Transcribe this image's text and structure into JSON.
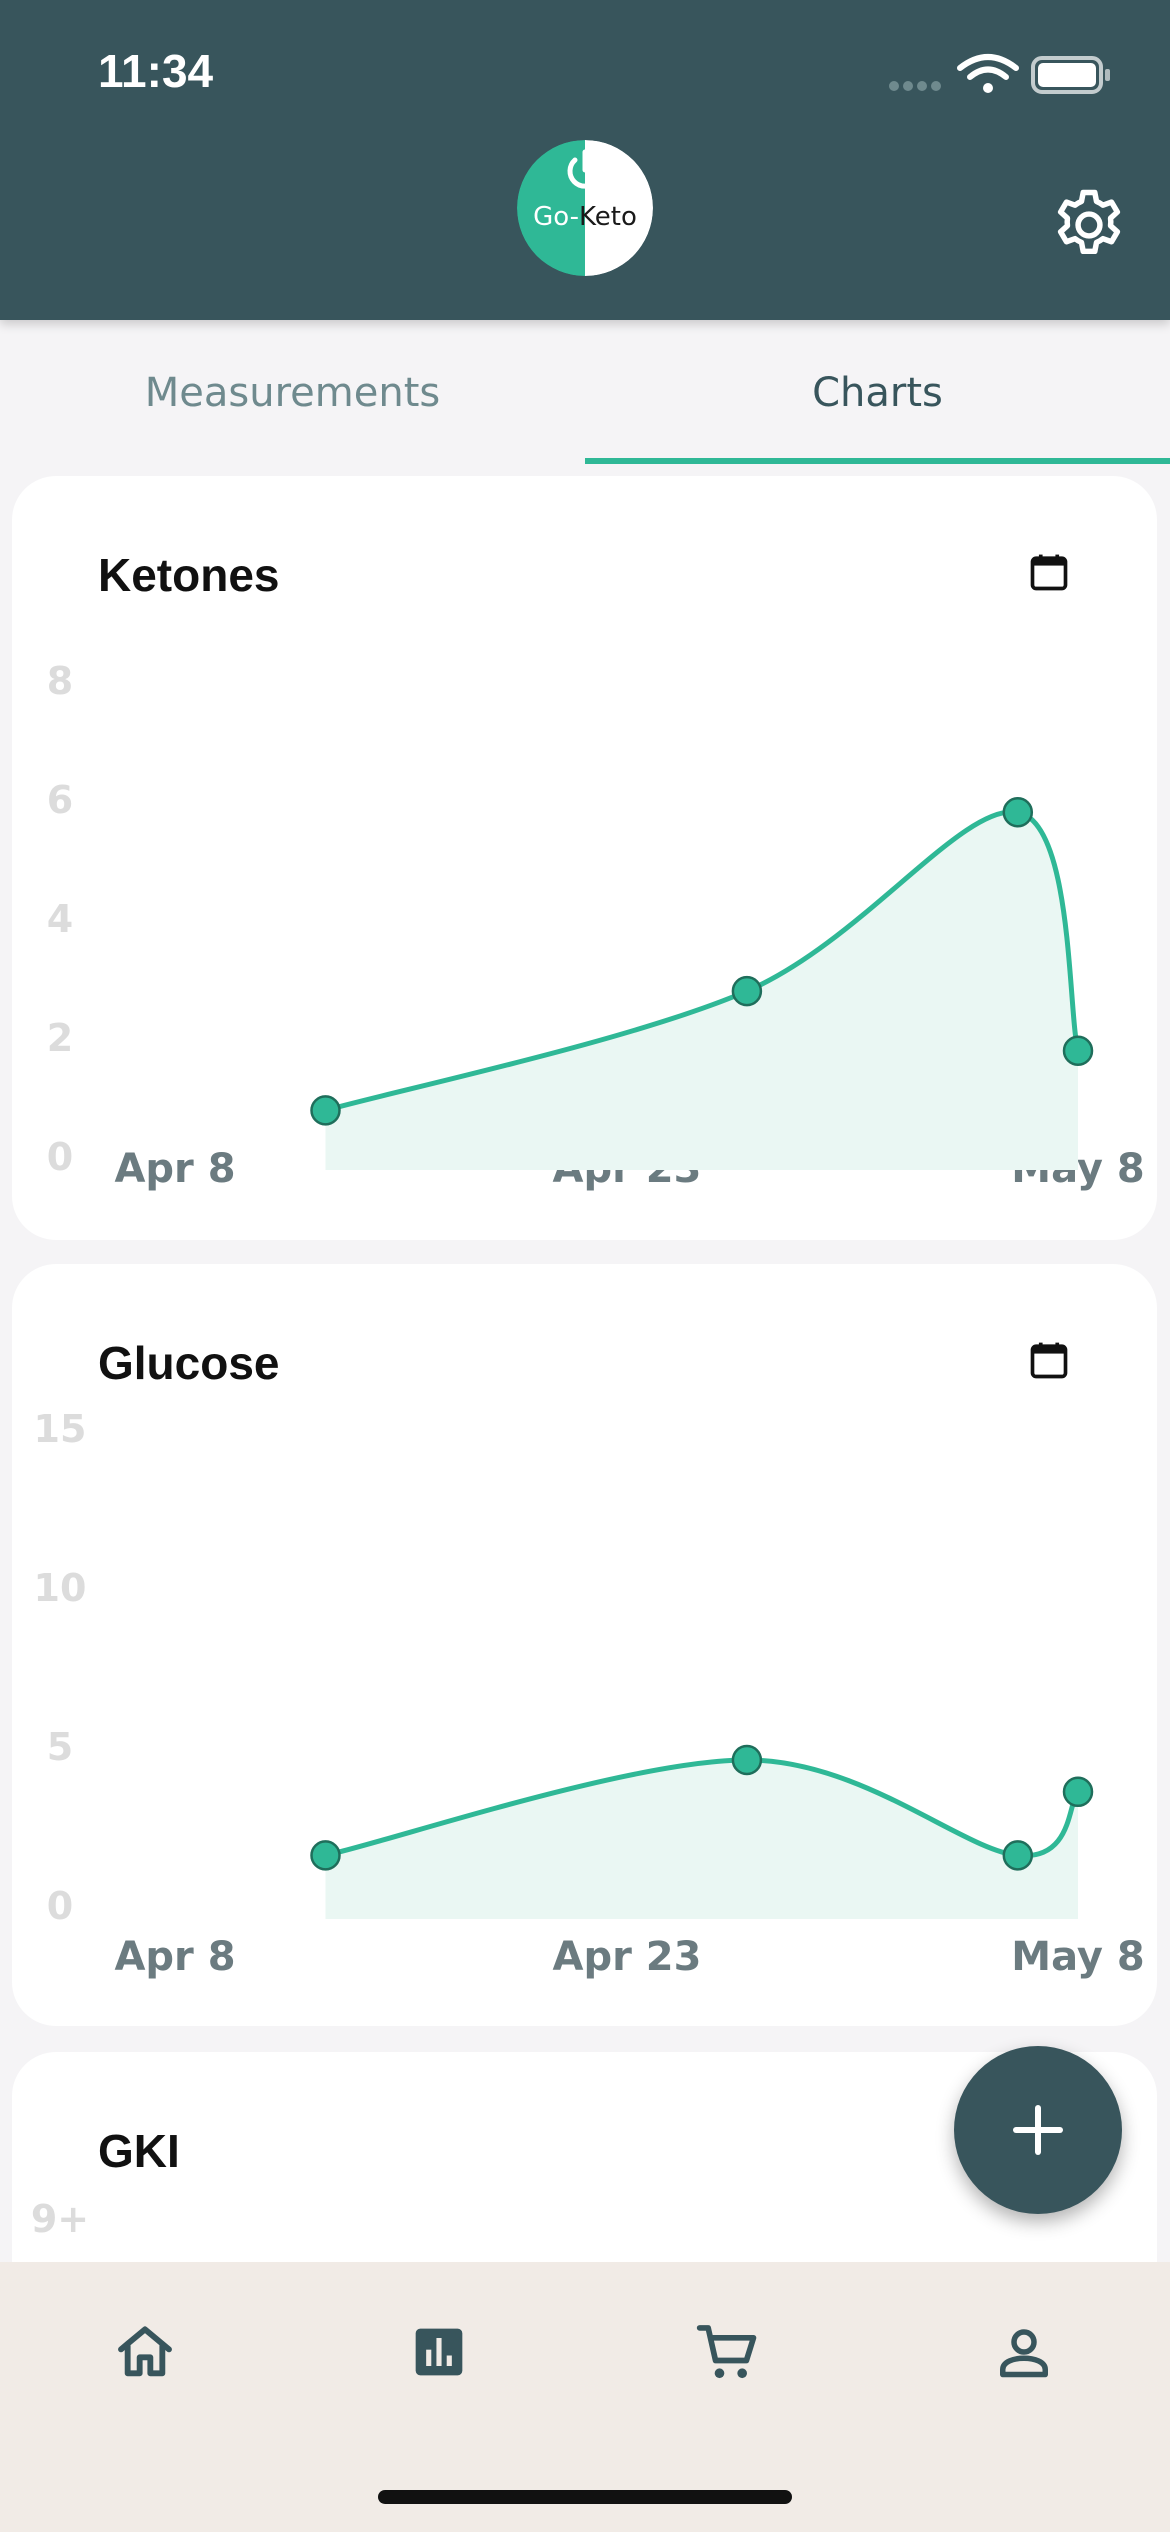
{
  "status_bar": {
    "time": "11:34"
  },
  "header": {
    "logo": {
      "part1": "Go-",
      "part2": "Keto"
    },
    "settings_icon": "gear-icon"
  },
  "tabs": [
    {
      "label": "Measurements",
      "active": false
    },
    {
      "label": "Charts",
      "active": true
    }
  ],
  "colors": {
    "header_bg": "#38555c",
    "accent": "#2fb896",
    "area_fill": "#eaf7f3",
    "nav_bg": "#f1ebe6"
  },
  "charts": [
    {
      "title": "Ketones",
      "icon": "calendar-icon"
    },
    {
      "title": "Glucose",
      "icon": "calendar-icon"
    },
    {
      "title": "GKI",
      "icon": "calendar-icon"
    }
  ],
  "chart_data": [
    {
      "type": "area",
      "title": "Ketones",
      "x": [
        "2022-04-13",
        "2022-04-27",
        "2022-05-06",
        "2022-05-08"
      ],
      "values": [
        1,
        3,
        6,
        2
      ],
      "x_ticks": [
        "Apr 8",
        "Apr 23",
        "May 8"
      ],
      "y_ticks": [
        "0",
        "2",
        "4",
        "6",
        "8"
      ],
      "ylim": [
        0,
        8
      ],
      "grid": false,
      "legend": "none"
    },
    {
      "type": "area",
      "title": "Glucose",
      "x": [
        "2022-04-13",
        "2022-04-27",
        "2022-05-06",
        "2022-05-08"
      ],
      "values": [
        2,
        5,
        2,
        4
      ],
      "x_ticks": [
        "Apr 8",
        "Apr 23",
        "May 8"
      ],
      "y_ticks": [
        "0",
        "5",
        "10",
        "15"
      ],
      "ylim": [
        0,
        15
      ],
      "grid": false,
      "legend": "none"
    },
    {
      "type": "area",
      "title": "GKI",
      "y_ticks": [
        "9+"
      ],
      "legend": "none"
    }
  ],
  "fab": {
    "icon": "plus-icon"
  },
  "bottom_nav": [
    {
      "name": "home",
      "icon": "home-icon"
    },
    {
      "name": "charts",
      "icon": "bar-chart-icon"
    },
    {
      "name": "shop",
      "icon": "cart-icon"
    },
    {
      "name": "profile",
      "icon": "person-icon"
    }
  ]
}
